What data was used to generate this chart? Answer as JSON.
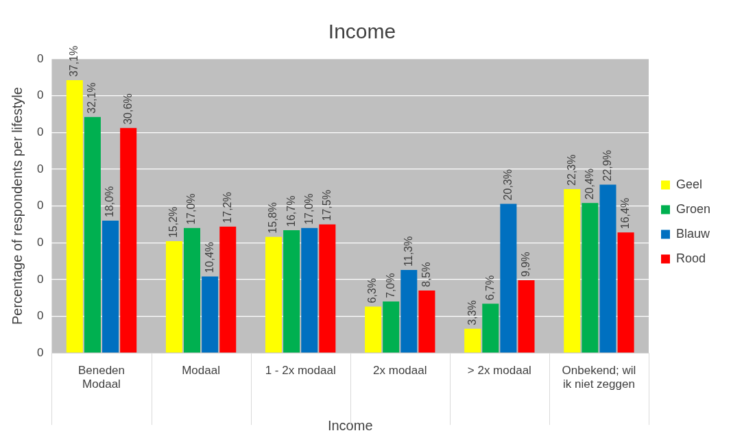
{
  "chart_data": {
    "type": "bar",
    "title": "Income",
    "xlabel": "Income",
    "ylabel": "Percentage of respondents per lifestyle",
    "categories": [
      "Beneden Modaal",
      "Modaal",
      "1 - 2x modaal",
      "2x modaal",
      "> 2x modaal",
      "Onbekend; wil ik niet zeggen"
    ],
    "series": [
      {
        "name": "Geel",
        "color": "#ffff00",
        "values": [
          0.371,
          0.152,
          0.158,
          0.063,
          0.033,
          0.223
        ],
        "value_labels": [
          "37,1%",
          "15,2%",
          "15,8%",
          "6,3%",
          "3,3%",
          "22,3%"
        ]
      },
      {
        "name": "Groen",
        "color": "#00b050",
        "values": [
          0.321,
          0.17,
          0.167,
          0.07,
          0.067,
          0.204
        ],
        "value_labels": [
          "32,1%",
          "17,0%",
          "16,7%",
          "7,0%",
          "6,7%",
          "20,4%"
        ]
      },
      {
        "name": "Blauw",
        "color": "#0070c0",
        "values": [
          0.18,
          0.104,
          0.17,
          0.113,
          0.203,
          0.229
        ],
        "value_labels": [
          "18,0%",
          "10,4%",
          "17,0%",
          "11,3%",
          "20,3%",
          "22,9%"
        ]
      },
      {
        "name": "Rood",
        "color": "#ff0000",
        "values": [
          0.306,
          0.172,
          0.175,
          0.085,
          0.099,
          0.164
        ],
        "value_labels": [
          "30,6%",
          "17,2%",
          "17,5%",
          "8,5%",
          "9,9%",
          "16,4%"
        ]
      }
    ],
    "ylim": [
      0,
      0.4
    ],
    "yticks": [
      0,
      {
        "value": 0.05,
        "label": "0"
      },
      {
        "value": 0.1,
        "label": "0"
      },
      {
        "value": 0.15,
        "label": "0"
      },
      {
        "value": 0.2,
        "label": "0"
      },
      {
        "value": 0.25,
        "label": "0"
      },
      {
        "value": 0.3,
        "label": "0"
      },
      {
        "value": 0.35,
        "label": "0"
      },
      {
        "value": 0.4,
        "label": "0"
      }
    ],
    "grid": "y",
    "legend": "right"
  }
}
